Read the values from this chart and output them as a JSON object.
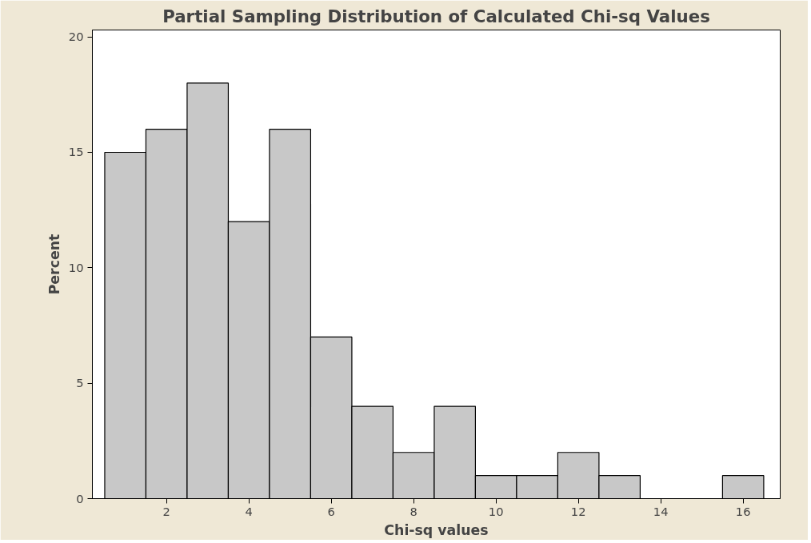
{
  "chart_data": {
    "type": "histogram",
    "title": "Partial Sampling Distribution of Calculated Chi-sq Values",
    "xlabel": "Chi-sq values",
    "ylabel": "Percent",
    "bins": [
      0.5,
      1.5,
      2.5,
      3.5,
      4.5,
      5.5,
      6.5,
      7.5,
      8.5,
      9.5,
      10.5,
      11.5,
      12.5,
      13.5,
      14.5,
      15.5,
      16.5
    ],
    "values": [
      15,
      16,
      18,
      12,
      16,
      7,
      4,
      2,
      4,
      1,
      1,
      2,
      1,
      0,
      0,
      1
    ],
    "color": "#c8c8c8",
    "xlim": [
      0.2,
      16.9
    ],
    "xticks": [
      2,
      4,
      6,
      8,
      10,
      12,
      14,
      16
    ],
    "ylim": [
      0,
      20.3
    ],
    "yticks": [
      0,
      5,
      10,
      15,
      20
    ],
    "grid": false
  }
}
